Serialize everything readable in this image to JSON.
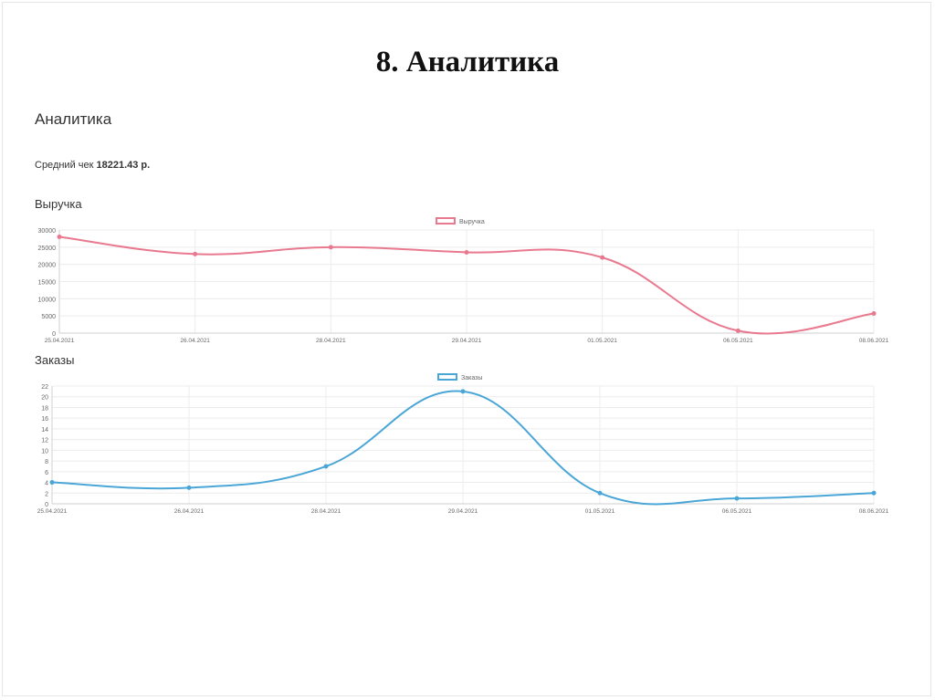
{
  "slide": {
    "title": "8. Аналитика"
  },
  "page": {
    "heading": "Аналитика",
    "avg_check_label": "Средний чек",
    "avg_check_value": "18221.43 р."
  },
  "sections": {
    "revenue_title": "Выручка",
    "orders_title": "Заказы"
  },
  "colors": {
    "revenue": "#e8798f",
    "orders": "#4aa6d6",
    "grid": "#ececec",
    "axis_text": "#666666"
  },
  "chart_data": [
    {
      "type": "line",
      "categories": [
        "25.04.2021",
        "26.04.2021",
        "28.04.2021",
        "29.04.2021",
        "01.05.2021",
        "06.05.2021",
        "08.06.2021"
      ],
      "series": [
        {
          "name": "Выручка",
          "values": [
            28000,
            23000,
            25000,
            23500,
            22000,
            700,
            5700
          ]
        }
      ],
      "ylim": [
        0,
        30000
      ],
      "yticks": [
        0,
        5000,
        10000,
        15000,
        20000,
        25000,
        30000
      ],
      "grid": true,
      "legend": "top-center"
    },
    {
      "type": "line",
      "categories": [
        "25.04.2021",
        "26.04.2021",
        "28.04.2021",
        "29.04.2021",
        "01.05.2021",
        "06.05.2021",
        "08.06.2021"
      ],
      "series": [
        {
          "name": "Заказы",
          "values": [
            4,
            3,
            7,
            21,
            2,
            1,
            2
          ]
        }
      ],
      "ylim": [
        0,
        22
      ],
      "yticks": [
        0,
        2,
        4,
        6,
        8,
        10,
        12,
        14,
        16,
        18,
        20,
        22
      ],
      "grid": true,
      "legend": "top-center"
    }
  ]
}
